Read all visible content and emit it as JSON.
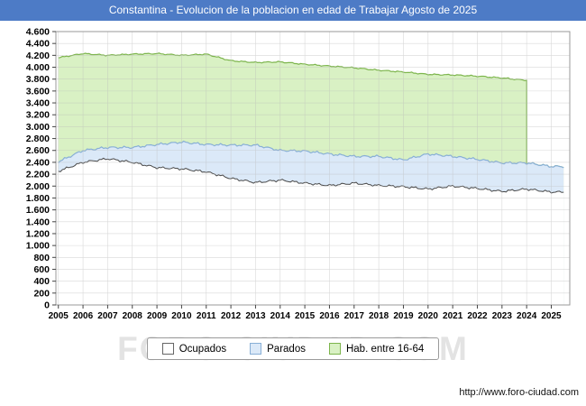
{
  "title": {
    "text": "Constantina - Evolucion de la poblacion en edad de Trabajar Agosto de 2025",
    "bg": "#4d7bc6"
  },
  "watermark": "FORO-CIUDAD.COM",
  "footer": {
    "url": "http://www.foro-ciudad.com"
  },
  "colors": {
    "green_fill": "#d9f1c4",
    "green_line": "#7db54d",
    "blue_fill": "#dbe9f8",
    "blue_line": "#88afd6",
    "white_fill": "#ffffff",
    "white_line": "#4a4a4a",
    "grid": "#b9b9b9",
    "border": "#999999",
    "tick": "#444444",
    "label": "#000000"
  },
  "legend": {
    "items": [
      {
        "label": "Ocupados",
        "fill": "#ffffff",
        "stroke": "#666666"
      },
      {
        "label": "Parados",
        "fill": "#dbe9f8",
        "stroke": "#88afd6"
      },
      {
        "label": "Hab. entre 16-64",
        "fill": "#d9f1c4",
        "stroke": "#7db54d"
      }
    ]
  },
  "chart_data": {
    "type": "area",
    "title": "Constantina - Evolucion de la poblacion en edad de Trabajar Agosto de 2025",
    "xlabel": "",
    "ylabel": "",
    "xlim": [
      2004.9,
      2025.75
    ],
    "ylim": [
      0,
      4600
    ],
    "ytick_step": 200,
    "x_end": 2025.58,
    "grid": true,
    "legend_position": "bottom",
    "stacking_note": "Parados se apila sobre Ocupados; Hab. entre 16-64 es el area verde superior",
    "hab_drop_x": 2024.0,
    "x_years": [
      2005,
      2006,
      2007,
      2008,
      2009,
      2010,
      2011,
      2012,
      2013,
      2014,
      2015,
      2016,
      2017,
      2018,
      2019,
      2020,
      2021,
      2022,
      2023,
      2024,
      2025
    ],
    "series": [
      {
        "name": "Ocupados",
        "values": [
          2250,
          2400,
          2460,
          2400,
          2310,
          2290,
          2240,
          2130,
          2060,
          2100,
          2050,
          2010,
          2050,
          2010,
          1990,
          1950,
          2000,
          1960,
          1910,
          1950,
          1900
        ]
      },
      {
        "name": "Parados",
        "values": [
          160,
          200,
          190,
          250,
          390,
          450,
          460,
          560,
          630,
          500,
          540,
          530,
          450,
          490,
          450,
          590,
          500,
          490,
          480,
          440,
          430
        ]
      },
      {
        "name": "Hab. entre 16-64",
        "values": [
          4160,
          4230,
          4200,
          4220,
          4230,
          4200,
          4220,
          4110,
          4080,
          4090,
          4050,
          4020,
          3990,
          3950,
          3920,
          3880,
          3870,
          3850,
          3820,
          3780,
          2360
        ]
      }
    ]
  }
}
